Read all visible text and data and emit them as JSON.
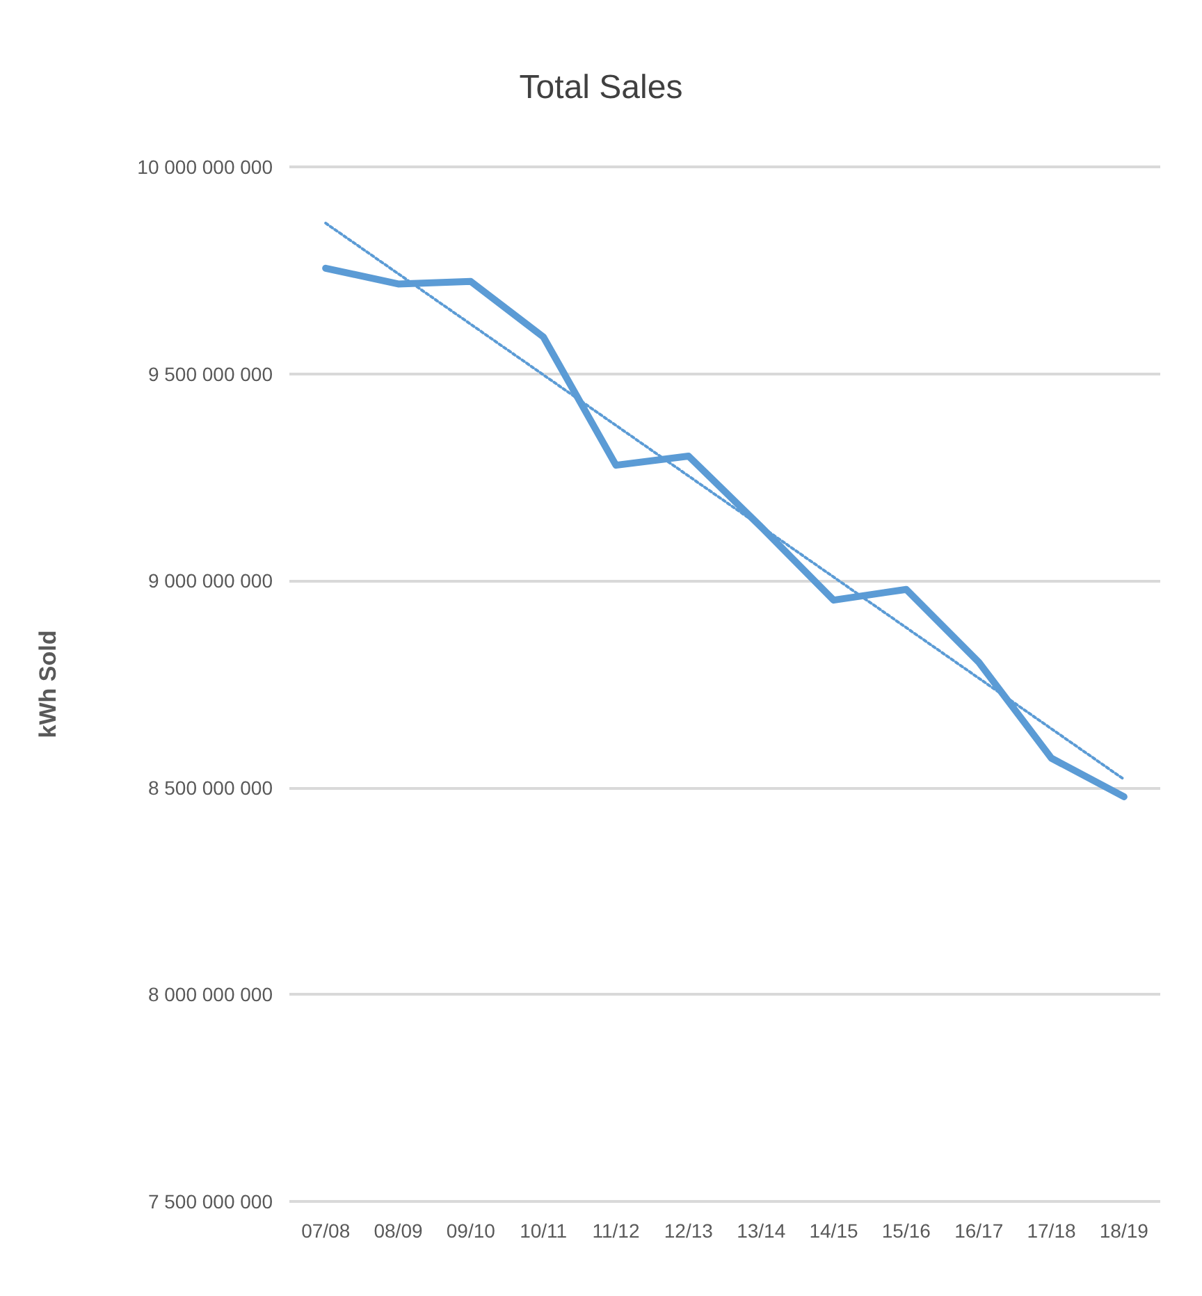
{
  "chart_data": {
    "type": "line",
    "title": "Total Sales",
    "ylabel": "kWh Sold",
    "categories": [
      "07/08",
      "08/09",
      "09/10",
      "10/11",
      "11/12",
      "12/13",
      "13/14",
      "14/15",
      "15/16",
      "16/17",
      "17/18",
      "18/19"
    ],
    "series": [
      {
        "color": "#5b9bd5",
        "values": [
          9755000000,
          9717000000,
          9723000000,
          9589000000,
          9279000000,
          9301000000,
          9130000000,
          8953000000,
          8979000000,
          8803000000,
          8571000000,
          8478000000
        ]
      },
      {
        "type": "line",
        "color": "#5b9bd5",
        "line_style": "dotted",
        "x": [
          "07/08",
          "18/19"
        ],
        "values": [
          9864000000,
          8520000000
        ]
      }
    ],
    "ylim": [
      7500000000,
      10000000000
    ],
    "yticks": [
      {
        "value": 7500000000,
        "label": "7 500 000 000"
      },
      {
        "value": 8000000000,
        "label": "8 000 000 000"
      },
      {
        "value": 8500000000,
        "label": "8 500 000 000"
      },
      {
        "value": 9000000000,
        "label": "9 000 000 000"
      },
      {
        "value": 9500000000,
        "label": "9 500 000 000"
      },
      {
        "value": 10000000000,
        "label": "10 000 000 000"
      }
    ],
    "grid": "y",
    "marker": "none",
    "line_style": "solid"
  }
}
